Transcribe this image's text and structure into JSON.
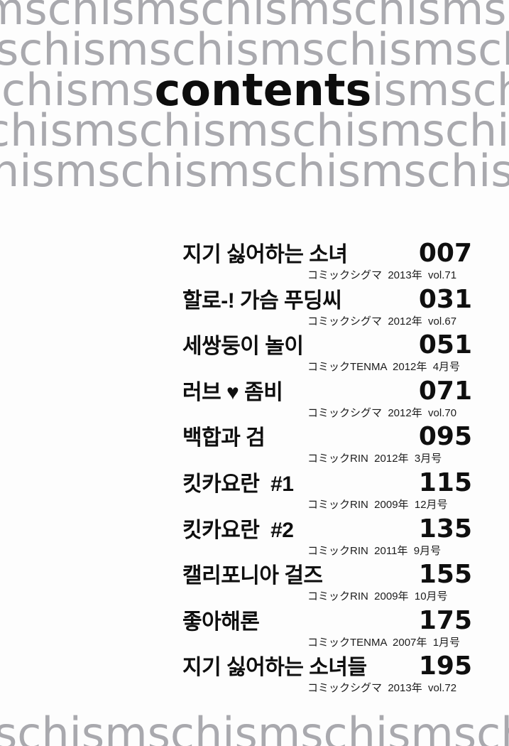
{
  "page_title": "contents",
  "colors": {
    "pattern_gray": "#a9a9ae",
    "ink_black": "#0d0d0d",
    "background": "#fdfdfd"
  },
  "pattern": {
    "word": "schism",
    "top_rows": [
      "mschismschismschismschismschismschism",
      "schismschismschismschismschismschism",
      "chismschismschismschismschismschism",
      "hismschismschismschismschismschism"
    ],
    "title_row": {
      "pre": "chisms",
      "word": "contents",
      "post": "ismschismschismschismschism"
    },
    "bottom_row": "schismschismschismschismschismschism"
  },
  "toc": {
    "entries": [
      {
        "title": "지기 싫어하는 소녀",
        "page": "007",
        "source": "コミックシグマ  2013年  vol.71"
      },
      {
        "title": "할로-! 가슴 푸딩씨",
        "page": "031",
        "source": "コミックシグマ  2012年  vol.67"
      },
      {
        "title": "세쌍둥이 놀이",
        "page": "051",
        "source": "コミックTENMA  2012年  4月号"
      },
      {
        "title": "러브 ♥ 좀비",
        "page": "071",
        "source": "コミックシグマ  2012年  vol.70"
      },
      {
        "title": "백합과 검",
        "page": "095",
        "source": "コミックRIN  2012年  3月号"
      },
      {
        "title": "킷카요란  #1",
        "page": "115",
        "source": "コミックRIN  2009年  12月号"
      },
      {
        "title": "킷카요란  #2",
        "page": "135",
        "source": "コミックRIN  2011年  9月号"
      },
      {
        "title": "캘리포니아 걸즈",
        "page": "155",
        "source": "コミックRIN  2009年  10月号"
      },
      {
        "title": "좋아해론",
        "page": "175",
        "source": "コミックTENMA  2007年  1月号"
      },
      {
        "title": "지기 싫어하는 소녀들",
        "page": "195",
        "source": "コミックシグマ  2013年  vol.72"
      }
    ]
  }
}
